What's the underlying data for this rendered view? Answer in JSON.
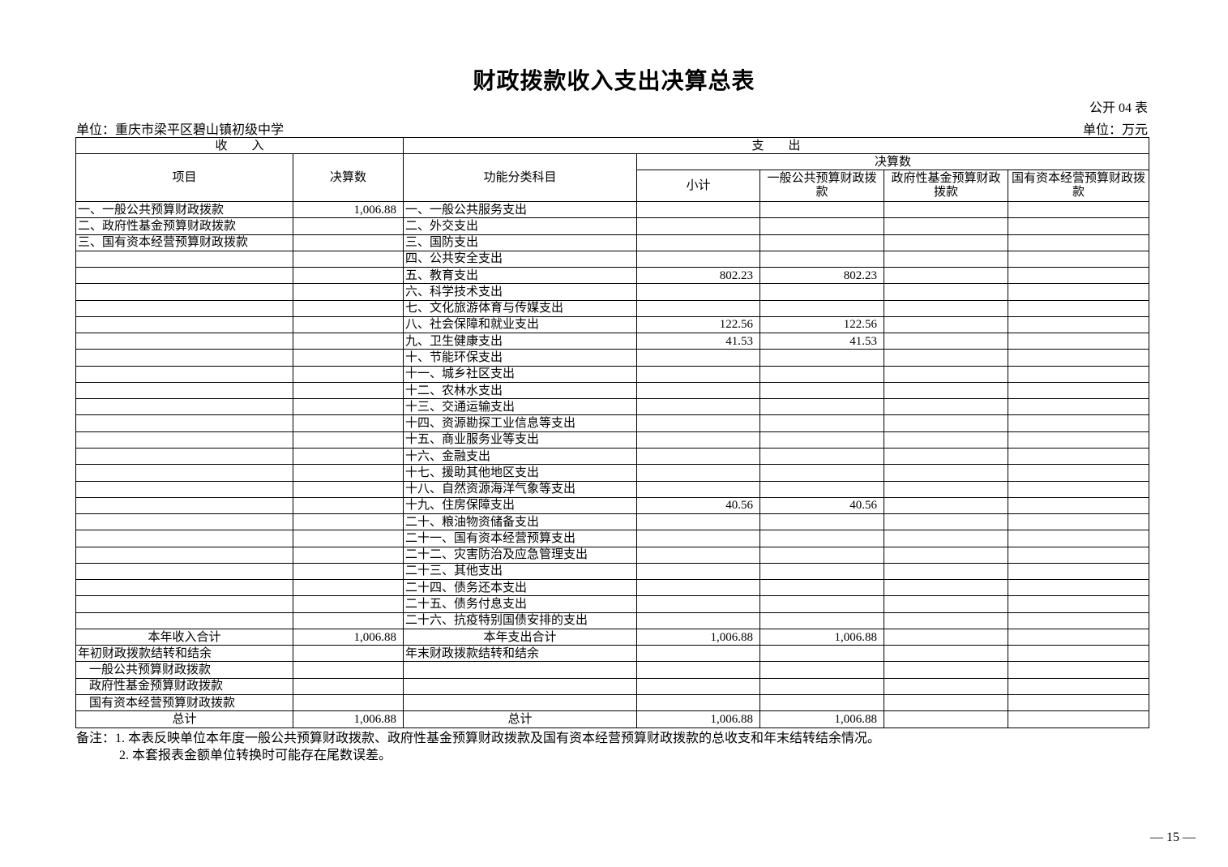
{
  "title": "财政拨款收入支出决算总表",
  "table_no": "公开 04 表",
  "unit_left": "单位：重庆市梁平区碧山镇初级中学",
  "unit_right": "单位：万元",
  "header": {
    "income": "收　　入",
    "expense": "支　　出",
    "item": "项目",
    "amount": "决算数",
    "function_class": "功能分类科目",
    "final_amount": "决算数",
    "subtotal": "小计",
    "general_budget": "一般公共预算财政拨款",
    "gov_fund": "政府性基金预算财政拨款",
    "state_capital": "国有资本经营预算财政拨款"
  },
  "rows": [
    [
      "一、一般公共预算财政拨款",
      "1,006.88",
      "一、一般公共服务支出",
      "",
      "",
      "",
      ""
    ],
    [
      "二、政府性基金预算财政拨款",
      "",
      "二、外交支出",
      "",
      "",
      "",
      ""
    ],
    [
      "三、国有资本经营预算财政拨款",
      "",
      "三、国防支出",
      "",
      "",
      "",
      ""
    ],
    [
      "",
      "",
      "四、公共安全支出",
      "",
      "",
      "",
      ""
    ],
    [
      "",
      "",
      "五、教育支出",
      "802.23",
      "802.23",
      "",
      ""
    ],
    [
      "",
      "",
      "六、科学技术支出",
      "",
      "",
      "",
      ""
    ],
    [
      "",
      "",
      "七、文化旅游体育与传媒支出",
      "",
      "",
      "",
      ""
    ],
    [
      "",
      "",
      "八、社会保障和就业支出",
      "122.56",
      "122.56",
      "",
      ""
    ],
    [
      "",
      "",
      "九、卫生健康支出",
      "41.53",
      "41.53",
      "",
      ""
    ],
    [
      "",
      "",
      "十、节能环保支出",
      "",
      "",
      "",
      ""
    ],
    [
      "",
      "",
      "十一、城乡社区支出",
      "",
      "",
      "",
      ""
    ],
    [
      "",
      "",
      "十二、农林水支出",
      "",
      "",
      "",
      ""
    ],
    [
      "",
      "",
      "十三、交通运输支出",
      "",
      "",
      "",
      ""
    ],
    [
      "",
      "",
      "十四、资源勘探工业信息等支出",
      "",
      "",
      "",
      ""
    ],
    [
      "",
      "",
      "十五、商业服务业等支出",
      "",
      "",
      "",
      ""
    ],
    [
      "",
      "",
      "十六、金融支出",
      "",
      "",
      "",
      ""
    ],
    [
      "",
      "",
      "十七、援助其他地区支出",
      "",
      "",
      "",
      ""
    ],
    [
      "",
      "",
      "十八、自然资源海洋气象等支出",
      "",
      "",
      "",
      ""
    ],
    [
      "",
      "",
      "十九、住房保障支出",
      "40.56",
      "40.56",
      "",
      ""
    ],
    [
      "",
      "",
      "二十、粮油物资储备支出",
      "",
      "",
      "",
      ""
    ],
    [
      "",
      "",
      "二十一、国有资本经营预算支出",
      "",
      "",
      "",
      ""
    ],
    [
      "",
      "",
      "二十二、灾害防治及应急管理支出",
      "",
      "",
      "",
      ""
    ],
    [
      "",
      "",
      "二十三、其他支出",
      "",
      "",
      "",
      ""
    ],
    [
      "",
      "",
      "二十四、债务还本支出",
      "",
      "",
      "",
      ""
    ],
    [
      "",
      "",
      "二十五、债务付息支出",
      "",
      "",
      "",
      ""
    ],
    [
      "",
      "",
      "二十六、抗疫特别国债安排的支出",
      "",
      "",
      "",
      ""
    ],
    [
      "本年收入合计",
      "1,006.88",
      "本年支出合计",
      "1,006.88",
      "1,006.88",
      "",
      ""
    ],
    [
      "年初财政拨款结转和结余",
      "",
      "年末财政拨款结转和结余",
      "",
      "",
      "",
      ""
    ],
    [
      "一般公共预算财政拨款",
      "",
      "",
      "",
      "",
      "",
      ""
    ],
    [
      "政府性基金预算财政拨款",
      "",
      "",
      "",
      "",
      "",
      ""
    ],
    [
      "国有资本经营预算财政拨款",
      "",
      "",
      "",
      "",
      "",
      ""
    ],
    [
      "总计",
      "1,006.88",
      "总计",
      "1,006.88",
      "1,006.88",
      "",
      ""
    ]
  ],
  "notes": [
    "备注：1. 本表反映单位本年度一般公共预算财政拨款、政府性基金预算财政拨款及国有资本经营预算财政拨款的总收支和年末结转结余情况。",
    "2. 本套报表金额单位转换时可能存在尾数误差。"
  ],
  "page_number": "— 15 —"
}
